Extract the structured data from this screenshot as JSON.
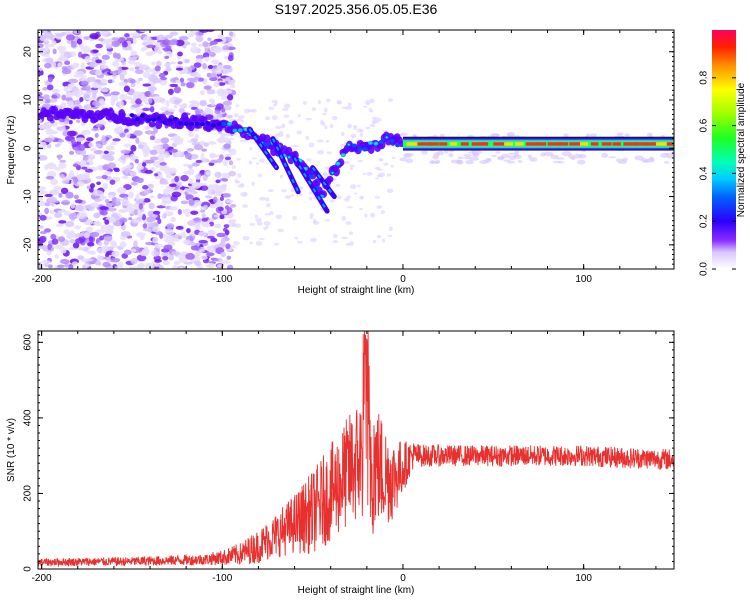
{
  "title": "S197.2025.356.05.05.E36",
  "chart_data": [
    {
      "type": "heatmap",
      "name": "spectrogram",
      "xlabel": "Height of straight line (km)",
      "ylabel": "Frequency (Hz)",
      "xlim": [
        -202,
        150
      ],
      "ylim": [
        -25,
        24.5
      ],
      "xticks": [
        -200,
        -100,
        0,
        100
      ],
      "yticks": [
        -20,
        -10,
        0,
        10,
        20
      ],
      "colorbar": {
        "label": "Normalized spectral amplitude",
        "range": [
          0,
          1
        ],
        "ticks": [
          0.0,
          0.2,
          0.4,
          0.6,
          0.8
        ]
      },
      "ridge": {
        "description_points_x_km": [
          -200,
          -180,
          -160,
          -140,
          -120,
          -100,
          -90,
          -80,
          -70,
          -60,
          -50,
          -45,
          -40,
          -30,
          -20,
          -10,
          0,
          20,
          60,
          100,
          140,
          150
        ],
        "description_points_freq_hz": [
          7,
          7,
          6.5,
          6,
          5.5,
          5,
          4,
          2,
          0,
          -2,
          -6,
          -10,
          -6,
          0.5,
          0,
          2,
          1,
          1,
          1,
          1,
          1,
          1.5
        ]
      }
    },
    {
      "type": "line",
      "name": "snr",
      "xlabel": "Height of straight line (km)",
      "ylabel": "SNR (10 * v/v)",
      "xlim": [
        -202,
        150
      ],
      "ylim": [
        0,
        630
      ],
      "xticks": [
        -200,
        -100,
        0,
        100
      ],
      "yticks": [
        0,
        200,
        400,
        600
      ],
      "color": "#e8302e",
      "envelope": {
        "x": [
          -202,
          -150,
          -110,
          -100,
          -90,
          -80,
          -70,
          -60,
          -50,
          -40,
          -30,
          -22,
          -20,
          -15,
          -10,
          -5,
          0,
          5,
          10,
          30,
          60,
          100,
          120,
          150
        ],
        "mean": [
          18,
          20,
          25,
          30,
          40,
          60,
          90,
          120,
          150,
          200,
          260,
          300,
          320,
          280,
          250,
          240,
          270,
          300,
          300,
          300,
          300,
          300,
          295,
          290
        ],
        "noise": [
          10,
          12,
          15,
          20,
          30,
          45,
          60,
          80,
          110,
          130,
          150,
          180,
          300,
          170,
          140,
          110,
          70,
          40,
          30,
          28,
          28,
          28,
          28,
          28
        ]
      }
    }
  ]
}
